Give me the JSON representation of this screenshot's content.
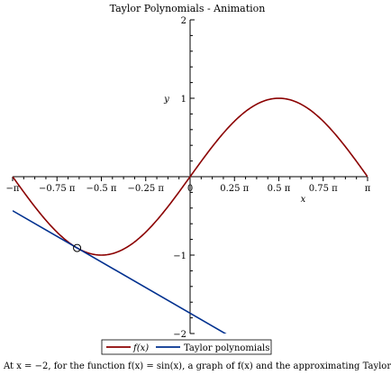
{
  "chart_data": {
    "type": "line",
    "title": "Taylor Polynomials - Animation",
    "xlabel": "x",
    "ylabel": "y",
    "xlim": [
      -3.14159,
      3.14159
    ],
    "ylim": [
      -2,
      2
    ],
    "x_ticks": [
      {
        "value": -3.14159,
        "label": "−π"
      },
      {
        "value": -2.35619,
        "label": "−0.75 π"
      },
      {
        "value": -1.5708,
        "label": "−0.5 π"
      },
      {
        "value": -0.7854,
        "label": "−0.25 π"
      },
      {
        "value": 0,
        "label": "0"
      },
      {
        "value": 0.7854,
        "label": "0.25 π"
      },
      {
        "value": 1.5708,
        "label": "0.5 π"
      },
      {
        "value": 2.35619,
        "label": "0.75 π"
      },
      {
        "value": 3.14159,
        "label": "π"
      }
    ],
    "y_ticks": [
      {
        "value": 2,
        "label": "2"
      },
      {
        "value": 1,
        "label": "1"
      },
      {
        "value": -1,
        "label": "−1"
      },
      {
        "value": -2,
        "label": "−2"
      }
    ],
    "series": [
      {
        "name": "f(x)",
        "color": "#8b0000",
        "function": "sin(x)",
        "x": [
          -3.1416,
          -2.7489,
          -2.3562,
          -1.9635,
          -1.5708,
          -1.1781,
          -0.7854,
          -0.3927,
          0,
          0.3927,
          0.7854,
          1.1781,
          1.5708,
          1.9635,
          2.3562,
          2.7489,
          3.1416
        ],
        "y": [
          0,
          -0.3827,
          -0.7071,
          -0.9239,
          -1,
          -0.9239,
          -0.7071,
          -0.3827,
          0,
          0.3827,
          0.7071,
          0.9239,
          1,
          0.9239,
          0.7071,
          0.3827,
          0
        ]
      },
      {
        "name": "Taylor polynomials",
        "color": "#00308f",
        "function": "sin(-2) + cos(-2)(x+2)",
        "x": [
          -3.1416,
          -2,
          0,
          0.66
        ],
        "y": [
          -0.434,
          -0.909,
          -1.741,
          -2.016
        ]
      }
    ],
    "marker": {
      "x": -2,
      "y": -0.909
    },
    "legend": {
      "placement": "bottom-center",
      "entries": [
        {
          "label": "f(x)",
          "color": "#8b0000"
        },
        {
          "label": "Taylor polynomials",
          "color": "#00308f"
        }
      ]
    },
    "grid": false
  },
  "caption": "At x = −2, for the function f(x) = sin(x), a graph of f(x) and the approximating Taylor"
}
